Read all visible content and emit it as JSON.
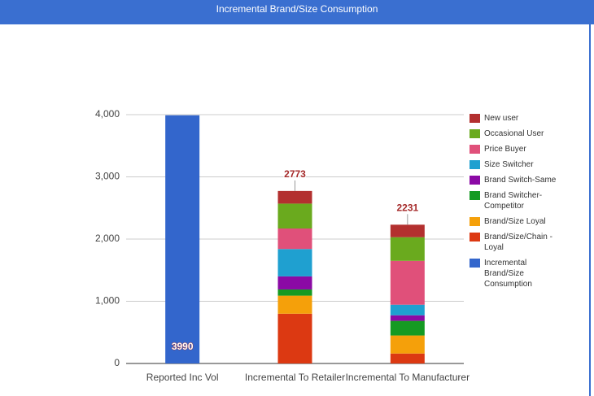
{
  "chart_data": {
    "type": "stacked_bar",
    "title": "Incremental Brand/Size Consumption",
    "categories": [
      "Reported Inc Vol",
      "Incremental To Retailer",
      "Incremental To Manufacturer"
    ],
    "series": [
      {
        "name": "New user",
        "color": "#b3302f",
        "values": [
          null,
          203,
          201
        ]
      },
      {
        "name": "Occasional User",
        "color": "#6aaa1e",
        "values": [
          null,
          400,
          380
        ]
      },
      {
        "name": "Price Buyer",
        "color": "#e0507a",
        "values": [
          null,
          330,
          705
        ]
      },
      {
        "name": "Size Switcher",
        "color": "#1fa0d0",
        "values": [
          null,
          440,
          170
        ]
      },
      {
        "name": "Brand Switch-Same",
        "color": "#8b0aa5",
        "values": [
          null,
          210,
          90
        ]
      },
      {
        "name": "Brand Switcher-Competitor",
        "color": "#159a22",
        "values": [
          null,
          100,
          235
        ]
      },
      {
        "name": "Brand/Size Loyal",
        "color": "#f5a00a",
        "values": [
          null,
          290,
          290
        ]
      },
      {
        "name": "Brand/Size/Chain - Loyal",
        "color": "#dc3912",
        "values": [
          null,
          800,
          160
        ]
      },
      {
        "name": "Incremental Brand/Size Consumption",
        "color": "#3366cc",
        "values": [
          3990,
          null,
          null
        ]
      }
    ],
    "totals": [
      3990,
      2773,
      2231
    ],
    "ylim": [
      0,
      4000
    ],
    "yticks": [
      0,
      {
        "value": 1000,
        "label": "1,000"
      },
      {
        "value": 2000,
        "label": "2,000"
      },
      {
        "value": 3000,
        "label": "3,000"
      },
      {
        "value": 4000,
        "label": "4,000"
      }
    ],
    "grid": true,
    "legend": "right"
  }
}
